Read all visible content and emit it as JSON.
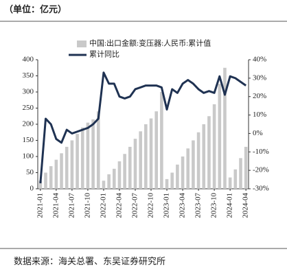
{
  "header": "（单位：亿元）",
  "footer": "数据来源：海关总署、东吴证券研究所",
  "chart_data": {
    "type": "bar",
    "categories": [
      "2021-01",
      null,
      null,
      "2021-04",
      null,
      null,
      "2021-07",
      null,
      null,
      "2021-10",
      null,
      null,
      "2022-01",
      null,
      null,
      "2022-04",
      null,
      null,
      "2022-07",
      null,
      null,
      "2022-10",
      null,
      null,
      "2023-01",
      null,
      null,
      "2023-04",
      null,
      null,
      "2023-07",
      null,
      null,
      "2023-10",
      null,
      null,
      "2024-01",
      null,
      null,
      "2024-04"
    ],
    "series": [
      {
        "name": "中国:出口金额:变压器:人民币:累计值",
        "color": "#c9c9c9",
        "type": "bar",
        "values": [
          25,
          50,
          70,
          90,
          110,
          130,
          150,
          170,
          190,
          205,
          215,
          240,
          25,
          45,
          62,
          85,
          108,
          130,
          155,
          178,
          200,
          218,
          240,
          300,
          30,
          50,
          75,
          100,
          125,
          150,
          175,
          200,
          225,
          262,
          325,
          375,
          35,
          60,
          95,
          130
        ]
      },
      {
        "name": "累计同比",
        "color": "#1f3252",
        "type": "line",
        "axis": "y2",
        "values": [
          -27,
          8,
          5,
          -3,
          -5,
          2,
          0,
          1,
          2,
          3,
          5,
          8,
          33,
          27,
          27,
          20,
          19,
          20,
          24,
          25,
          26,
          26,
          26,
          25,
          13,
          24,
          22,
          27,
          29,
          27,
          24,
          22,
          23,
          22,
          31,
          21,
          31,
          30,
          28,
          26
        ]
      }
    ],
    "ylim": [
      0,
      400
    ],
    "yticks": [
      0,
      50,
      100,
      150,
      200,
      250,
      300,
      350,
      400
    ],
    "y2lim": [
      -30,
      40
    ],
    "y2ticks": [
      {
        "value": -30,
        "label": "-30%"
      },
      {
        "value": -20,
        "label": "-20%"
      },
      {
        "value": -10,
        "label": "-10%"
      },
      {
        "value": 0,
        "label": "0%"
      },
      {
        "value": 10,
        "label": "10%"
      },
      {
        "value": 20,
        "label": "20%"
      },
      {
        "value": 30,
        "label": "30%"
      },
      {
        "value": 40,
        "label": "40%"
      }
    ]
  }
}
